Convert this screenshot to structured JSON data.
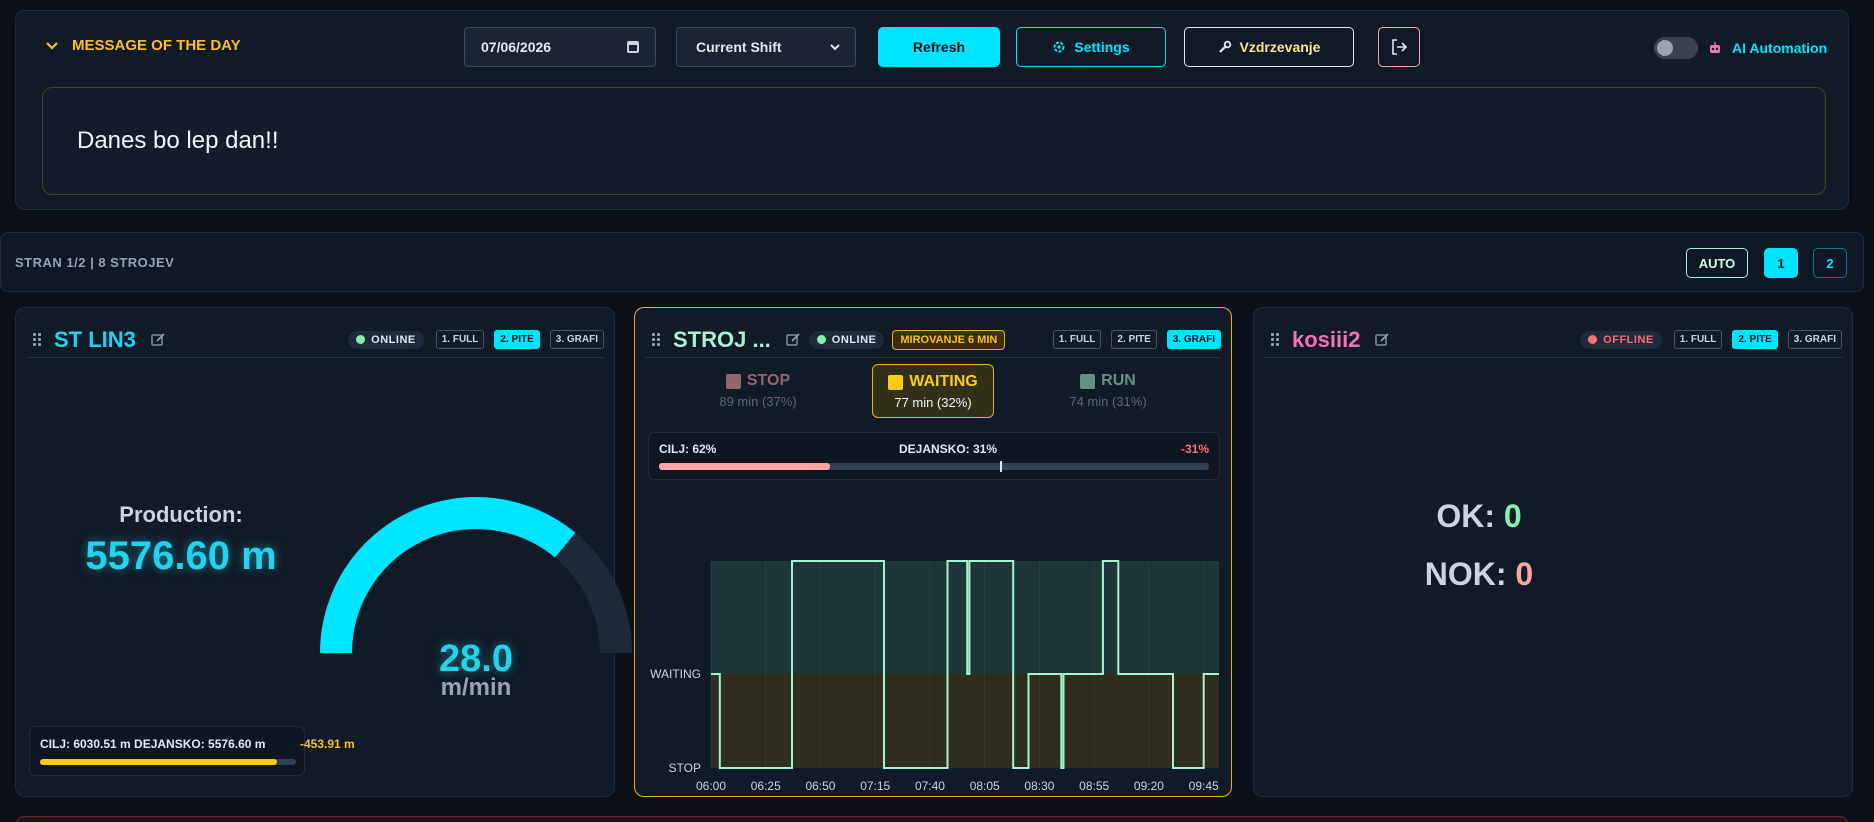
{
  "header": {
    "motd_label": "MESSAGE OF THE DAY",
    "date_value": "07/06/2026",
    "shift_value": "Current Shift",
    "refresh_label": "Refresh",
    "settings_label": "Settings",
    "maintenance_label": "Vzdrzevanje",
    "ai_label": "AI Automation",
    "ai_enabled": false
  },
  "motd": {
    "text": "Danes bo lep dan!!"
  },
  "pagination": {
    "label": "STRAN 1/2 | 8 STROJEV",
    "auto_label": "AUTO",
    "pages": [
      "1",
      "2"
    ],
    "current_page": "1"
  },
  "machines": [
    {
      "name": "ST LIN3",
      "title_color": "#22d3ee",
      "status": "ONLINE",
      "status_color": "#86efac",
      "modes": [
        "1. FULL",
        "2. PITE",
        "3. GRAFI"
      ],
      "active_mode": "2. PITE",
      "production_label": "Production:",
      "production_value": "5576.60 m",
      "speed_value": "28.0",
      "speed_unit": "m/min",
      "speed_gauge_fraction": 0.72,
      "target_text": "CILJ: 6030.51 m  DEJANSKO: 5576.60 m",
      "target_diff": "-453.91 m",
      "target_progress": 0.925
    },
    {
      "name": "STROJ ...",
      "title_color": "#a7f3d0",
      "status": "ONLINE",
      "status_color": "#86efac",
      "idle_badge": "MIROVANJE 6 MIN",
      "modes": [
        "1. FULL",
        "2. PITE",
        "3. GRAFI"
      ],
      "active_mode": "3. GRAFI",
      "states": [
        {
          "name": "STOP",
          "duration": "89 min (37%)"
        },
        {
          "name": "WAITING",
          "duration": "77 min (32%)"
        },
        {
          "name": "RUN",
          "duration": "74 min (31%)"
        }
      ],
      "cilj_label": "CILJ: 62%",
      "dejansko_label": "DEJANSKO: 31%",
      "diff_label": "-31%",
      "cilj_progress": 0.31,
      "cilj_target": 0.62
    },
    {
      "name": "kosiii2",
      "title_color": "#f472b6",
      "status": "OFFLINE",
      "status_color": "#f87171",
      "modes": [
        "1. FULL",
        "2. PITE",
        "3. GRAFI"
      ],
      "active_mode": "2. PITE",
      "ok_label": "OK: ",
      "ok_value": "0",
      "nok_label": "NOK: ",
      "nok_value": "0"
    }
  ],
  "chart_data": {
    "type": "line",
    "step": true,
    "x_ticks": [
      "06:00",
      "06:25",
      "06:50",
      "07:15",
      "07:40",
      "08:05",
      "08:30",
      "08:55",
      "09:20",
      "09:45"
    ],
    "y_ticks": [
      "STOP",
      "WAITING"
    ],
    "series": [
      {
        "points": [
          [
            "06:00",
            "WAITING"
          ],
          [
            "06:04",
            "STOP"
          ],
          [
            "06:37",
            "RUN"
          ],
          [
            "07:19",
            "STOP"
          ],
          [
            "07:48",
            "RUN"
          ],
          [
            "07:57",
            "WAITING"
          ],
          [
            "07:58",
            "RUN"
          ],
          [
            "08:18",
            "STOP"
          ],
          [
            "08:25",
            "WAITING"
          ],
          [
            "08:40",
            "STOP"
          ],
          [
            "08:41",
            "WAITING"
          ],
          [
            "08:59",
            "RUN"
          ],
          [
            "09:06",
            "WAITING"
          ],
          [
            "09:31",
            "STOP"
          ],
          [
            "09:45",
            "WAITING"
          ],
          [
            "09:52",
            "WAITING"
          ]
        ]
      }
    ],
    "x_range": [
      "06:00",
      "09:52"
    ]
  }
}
